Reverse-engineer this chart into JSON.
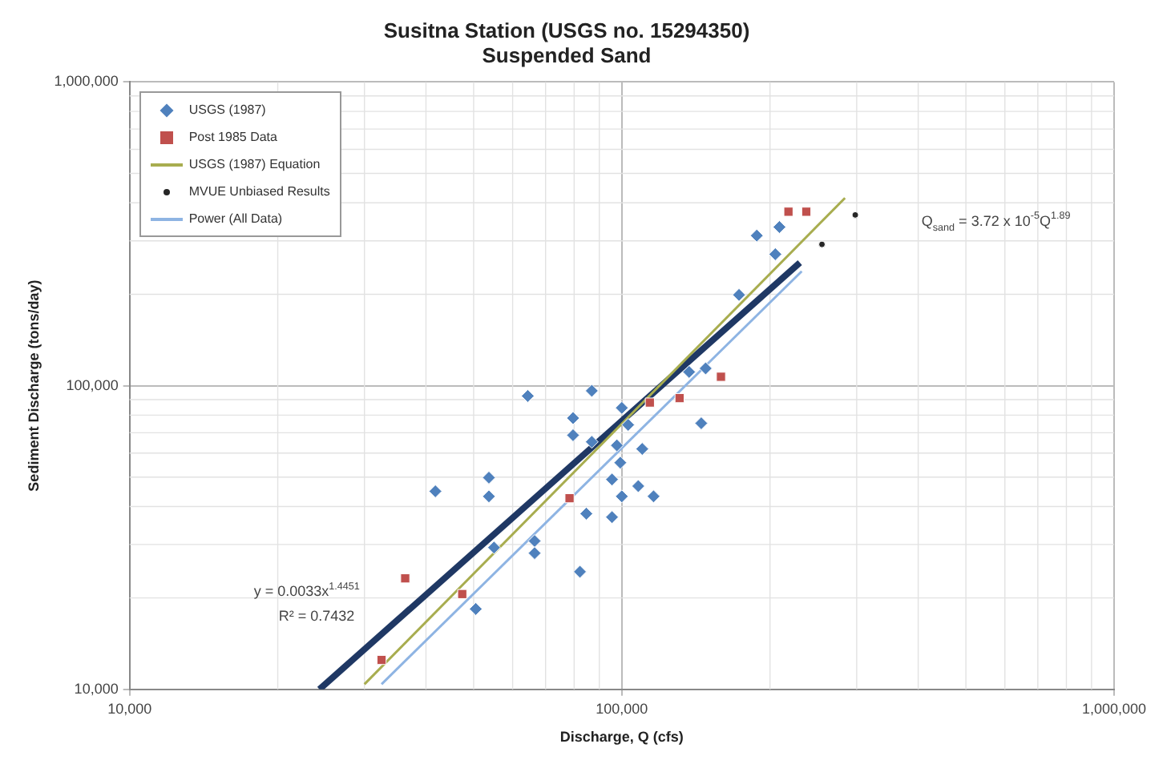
{
  "chart_data": {
    "type": "scatter",
    "title": "Susitna Station (USGS no. 15294350)",
    "subtitle": "Suspended Sand",
    "xlabel": "Discharge, Q (cfs)",
    "ylabel": "Sediment Discharge (tons/day)",
    "log": "xy",
    "grid": true,
    "legend": "top left",
    "xlim": [
      10000,
      1000000
    ],
    "ylim": [
      10000,
      1000000
    ],
    "xticks": [
      {
        "value": 10000,
        "label": "10,000"
      },
      {
        "value": 100000,
        "label": "100,000"
      },
      {
        "value": 1000000,
        "label": "1,000,000"
      }
    ],
    "yticks": [
      {
        "value": 10000,
        "label": "10,000"
      },
      {
        "value": 100000,
        "label": "100,000"
      },
      {
        "value": 1000000,
        "label": "1,000,000"
      }
    ],
    "series": [
      {
        "name": "USGS (1987)",
        "marker": "diamond",
        "color": "#4f81bd",
        "x": [
          41800,
          53700,
          53700,
          55000,
          66500,
          66500,
          50500,
          82200,
          64400,
          86900,
          79600,
          79600,
          86900,
          97700,
          110000,
          99300,
          95500,
          100000,
          108000,
          116000,
          84700,
          95500,
          100000,
          103000,
          145000,
          137000,
          148000,
          173000,
          188000,
          209000,
          205000
        ],
        "values": [
          44900,
          49800,
          43200,
          29300,
          30800,
          28100,
          18400,
          24400,
          92500,
          96200,
          78200,
          68700,
          65300,
          63600,
          61900,
          55800,
          49100,
          43200,
          46700,
          43200,
          37900,
          36900,
          84500,
          74300,
          75200,
          111000,
          114000,
          199000,
          312000,
          333000,
          271000
        ]
      },
      {
        "name": "Post 1985 Data",
        "marker": "square",
        "color": "#c0504d",
        "x": [
          32500,
          36300,
          47400,
          78300,
          114000,
          131000,
          159000,
          218000,
          237000
        ],
        "values": [
          12500,
          23200,
          20600,
          42600,
          88000,
          91000,
          107000,
          374000,
          374000
        ]
      },
      {
        "name": "USGS (1987) Equation",
        "type": "line",
        "marker": "none",
        "line_style": "solid",
        "color": "#a8ad4f",
        "x": [
          30000,
          284000
        ],
        "values": [
          10400,
          415000
        ]
      },
      {
        "name": "MVUE Unbiased Results",
        "marker": "circle",
        "color": "#262626",
        "x": [
          255000,
          298000
        ],
        "values": [
          292000,
          365000
        ]
      },
      {
        "name": "Power (All Data)",
        "type": "line",
        "marker": "none",
        "line_style": "solid",
        "color": "#8eb4e3",
        "x": [
          32500,
          232000
        ],
        "values": [
          10400,
          238000
        ]
      },
      {
        "type": "line",
        "marker": "none",
        "line_style": "solid",
        "color": "#1f3864",
        "x": [
          24300,
          230000
        ],
        "values": [
          10000,
          254000
        ]
      }
    ],
    "annotations": [
      "y = 0.0033x$^{1.4451}$",
      "R² = 0.7432",
      "Q$_{sand}$ = 3.72 x 10$^{-5}$Q$^{1.89}$"
    ]
  }
}
